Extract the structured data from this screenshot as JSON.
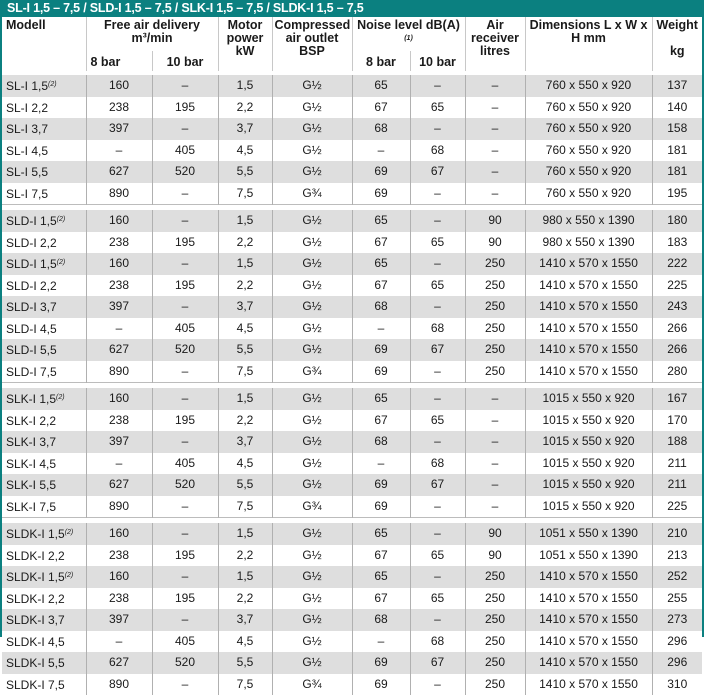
{
  "title": "SL-I 1,5 – 7,5 / SLD-I 1,5 – 7,5 / SLK-I 1,5 – 7,5 / SLDK-I 1,5 – 7,5",
  "header": {
    "model": "Modell",
    "free_air": "Free air delivery m³/min",
    "motor": "Motor power kW",
    "outlet": "Compressed air outlet BSP",
    "noise": "Noise level dB(A)",
    "noise_note": "(1)",
    "receiver": "Air receiver litres",
    "dimensions": "Dimensions L x W x H mm",
    "weight": "Weight",
    "weight_unit": "kg",
    "bar8": "8 bar",
    "bar10": "10 bar"
  },
  "groups": [
    [
      [
        "SL-I 1,5",
        "(2)",
        "160",
        "–",
        "1,5",
        "G½",
        "65",
        "–",
        "–",
        "760 x 550 x 920",
        "137"
      ],
      [
        "SL-I 2,2",
        "",
        "238",
        "195",
        "2,2",
        "G½",
        "67",
        "65",
        "–",
        "760 x 550 x 920",
        "140"
      ],
      [
        "SL-I 3,7",
        "",
        "397",
        "–",
        "3,7",
        "G½",
        "68",
        "–",
        "–",
        "760 x 550 x 920",
        "158"
      ],
      [
        "SL-I 4,5",
        "",
        "–",
        "405",
        "4,5",
        "G½",
        "–",
        "68",
        "–",
        "760 x 550 x 920",
        "181"
      ],
      [
        "SL-I 5,5",
        "",
        "627",
        "520",
        "5,5",
        "G½",
        "69",
        "67",
        "–",
        "760 x 550 x 920",
        "181"
      ],
      [
        "SL-I 7,5",
        "",
        "890",
        "–",
        "7,5",
        "G¾",
        "69",
        "–",
        "–",
        "760 x 550 x 920",
        "195"
      ]
    ],
    [
      [
        "SLD-I 1,5",
        "(2)",
        "160",
        "–",
        "1,5",
        "G½",
        "65",
        "–",
        "90",
        "980 x 550 x 1390",
        "180"
      ],
      [
        "SLD-I 2,2",
        "",
        "238",
        "195",
        "2,2",
        "G½",
        "67",
        "65",
        "90",
        "980 x 550 x 1390",
        "183"
      ],
      [
        "SLD-I 1,5",
        "(2)",
        "160",
        "–",
        "1,5",
        "G½",
        "65",
        "–",
        "250",
        "1410 x 570 x 1550",
        "222"
      ],
      [
        "SLD-I 2,2",
        "",
        "238",
        "195",
        "2,2",
        "G½",
        "67",
        "65",
        "250",
        "1410 x 570 x 1550",
        "225"
      ],
      [
        "SLD-I 3,7",
        "",
        "397",
        "–",
        "3,7",
        "G½",
        "68",
        "–",
        "250",
        "1410 x 570 x 1550",
        "243"
      ],
      [
        "SLD-I 4,5",
        "",
        "–",
        "405",
        "4,5",
        "G½",
        "–",
        "68",
        "250",
        "1410 x 570 x 1550",
        "266"
      ],
      [
        "SLD-I 5,5",
        "",
        "627",
        "520",
        "5,5",
        "G½",
        "69",
        "67",
        "250",
        "1410 x 570 x 1550",
        "266"
      ],
      [
        "SLD-I 7,5",
        "",
        "890",
        "–",
        "7,5",
        "G¾",
        "69",
        "–",
        "250",
        "1410 x 570 x 1550",
        "280"
      ]
    ],
    [
      [
        "SLK-I 1,5",
        "(2)",
        "160",
        "–",
        "1,5",
        "G½",
        "65",
        "–",
        "–",
        "1015 x 550 x 920",
        "167"
      ],
      [
        "SLK-I 2,2",
        "",
        "238",
        "195",
        "2,2",
        "G½",
        "67",
        "65",
        "–",
        "1015 x 550 x 920",
        "170"
      ],
      [
        "SLK-I 3,7",
        "",
        "397",
        "–",
        "3,7",
        "G½",
        "68",
        "–",
        "–",
        "1015 x 550 x 920",
        "188"
      ],
      [
        "SLK-I 4,5",
        "",
        "–",
        "405",
        "4,5",
        "G½",
        "–",
        "68",
        "–",
        "1015 x 550 x 920",
        "211"
      ],
      [
        "SLK-I 5,5",
        "",
        "627",
        "520",
        "5,5",
        "G½",
        "69",
        "67",
        "–",
        "1015 x 550 x 920",
        "211"
      ],
      [
        "SLK-I 7,5",
        "",
        "890",
        "–",
        "7,5",
        "G¾",
        "69",
        "–",
        "–",
        "1015 x 550 x 920",
        "225"
      ]
    ],
    [
      [
        "SLDK-I 1,5",
        "(2)",
        "160",
        "–",
        "1,5",
        "G½",
        "65",
        "–",
        "90",
        "1051 x 550 x 1390",
        "210"
      ],
      [
        "SLDK-I 2,2",
        "",
        "238",
        "195",
        "2,2",
        "G½",
        "67",
        "65",
        "90",
        "1051 x 550 x 1390",
        "213"
      ],
      [
        "SLDK-I 1,5",
        "(2)",
        "160",
        "–",
        "1,5",
        "G½",
        "65",
        "–",
        "250",
        "1410 x 570 x 1550",
        "252"
      ],
      [
        "SLDK-I 2,2",
        "",
        "238",
        "195",
        "2,2",
        "G½",
        "67",
        "65",
        "250",
        "1410 x 570 x 1550",
        "255"
      ],
      [
        "SLDK-I 3,7",
        "",
        "397",
        "–",
        "3,7",
        "G½",
        "68",
        "–",
        "250",
        "1410 x 570 x 1550",
        "273"
      ],
      [
        "SLDK-I 4,5",
        "",
        "–",
        "405",
        "4,5",
        "G½",
        "–",
        "68",
        "250",
        "1410 x 570 x 1550",
        "296"
      ],
      [
        "SLDK-I 5,5",
        "",
        "627",
        "520",
        "5,5",
        "G½",
        "69",
        "67",
        "250",
        "1410 x 570 x 1550",
        "296"
      ],
      [
        "SLDK-I 7,5",
        "",
        "890",
        "–",
        "7,5",
        "G¾",
        "69",
        "–",
        "250",
        "1410 x 570 x 1550",
        "310"
      ]
    ]
  ],
  "colors": {
    "accent": "#0b8080",
    "row_shade": "#dedede"
  }
}
